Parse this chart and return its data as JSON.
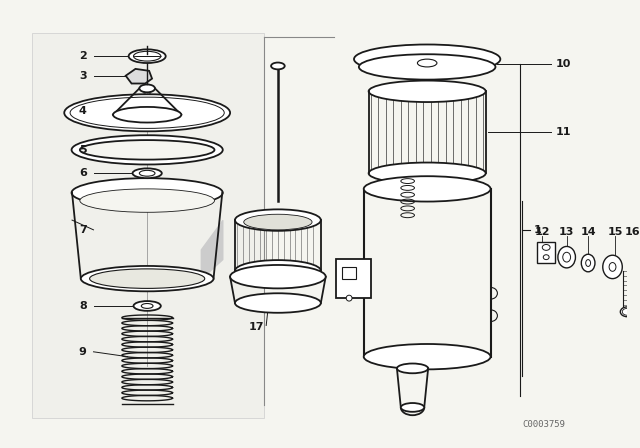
{
  "bg_color": "#f5f5f0",
  "line_color": "#1a1a1a",
  "watermark": "C0003759"
}
